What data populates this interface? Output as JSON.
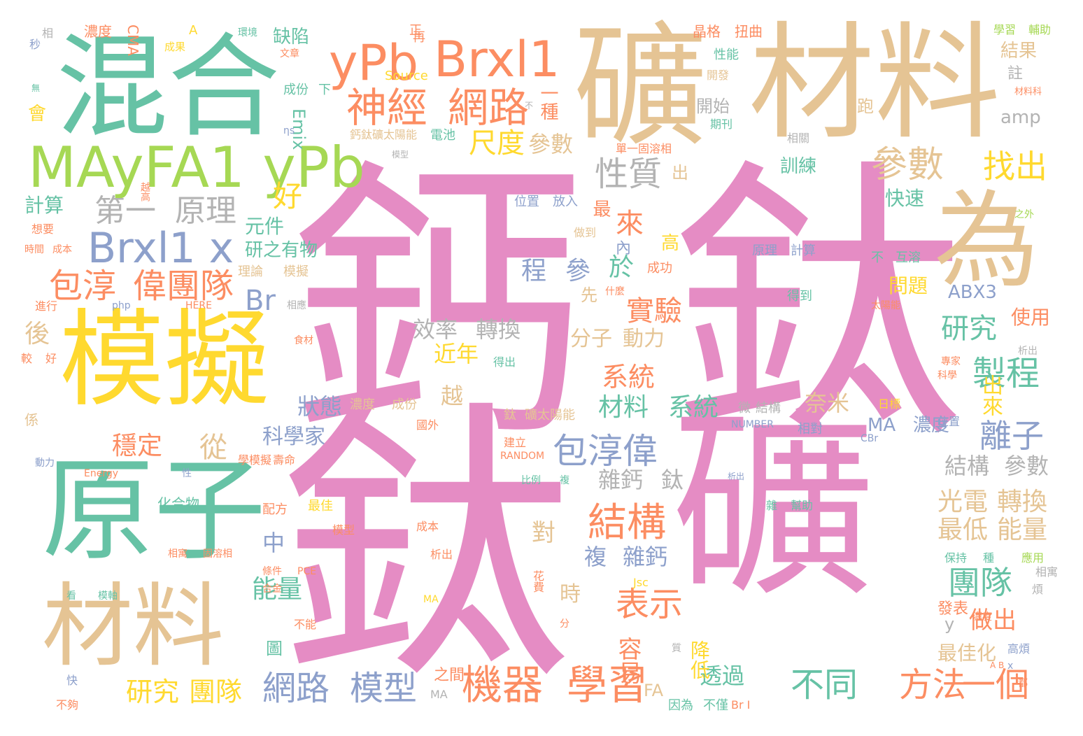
{
  "palette": {
    "pink": "#e58cc4",
    "green": "#66c2a5",
    "tan": "#e5c494",
    "yellow": "#ffd92f",
    "orange": "#fc8d62",
    "blue": "#8da0cb",
    "lime": "#a6d854",
    "gray": "#b3b3b3"
  },
  "words": [
    "鈣",
    "鈦",
    "鈦",
    "礦",
    "礦",
    "材料",
    "混合",
    "原子",
    "模擬",
    "材料",
    "為",
    "MAyFA1 yPb",
    "yPb",
    "Brxl1",
    "Brxl1 x",
    "神經",
    "網路",
    "參數",
    "找出",
    "包淳",
    "偉團隊",
    "第一",
    "原理",
    "性質",
    "尺度",
    "參數",
    "好",
    "Br",
    "包淳偉",
    "結構",
    "機器",
    "學習",
    "網路",
    "模型",
    "表示",
    "不同",
    "方法",
    "一個",
    "研究",
    "團隊",
    "製程",
    "離子",
    "團隊",
    "光電",
    "轉換",
    "最低",
    "能量",
    "轉換",
    "效率",
    "分子",
    "動力",
    "實驗",
    "系統",
    "材料",
    "系統",
    "程",
    "參",
    "於",
    "來",
    "研究",
    "後",
    "從",
    "穩定",
    "能量",
    "中",
    "越",
    "近年",
    "狀態",
    "科學家",
    "雜鈣",
    "鈦",
    "複",
    "雜鈣",
    "結構",
    "參數",
    "奈米",
    "MA",
    "濃度",
    "ABX3",
    "使用",
    "快速",
    "問題",
    "透過",
    "降低",
    "做出",
    "y",
    "最佳化",
    "容易",
    "時",
    "對",
    "計算",
    "元件",
    "研之有物",
    "Emix",
    "amp",
    "訓練",
    "出",
    "缺陷",
    "一種",
    "結果",
    "註",
    "開始",
    "跑",
    "高",
    "先",
    "最",
    "內",
    "出來",
    "濃度",
    "CMA",
    "A",
    "相",
    "秒",
    "成果",
    "環境",
    "文章",
    "正",
    "再",
    "晶格",
    "扭曲",
    "性能",
    "開發",
    "學習",
    "輔助",
    "材料科",
    "無",
    "會",
    "成份",
    "下",
    "Source",
    "不",
    "期刊",
    "ηs",
    "鈣鈦礦太陽能",
    "電池",
    "模型",
    "單一固溶相",
    "相關",
    "越高",
    "位置",
    "放入",
    "想要",
    "時間",
    "成本",
    "做到",
    "之外",
    "理論",
    "模擬",
    "成功",
    "原理",
    "計算",
    "什麼",
    "不",
    "互溶",
    "進行",
    "php",
    "HERE",
    "相應",
    "得到",
    "太陽能",
    "食材",
    "得出",
    "較",
    "好",
    "專家",
    "科學",
    "係",
    "濃度",
    "成份",
    "微",
    "結構",
    "鈦",
    "礦太陽能",
    "NUMBER",
    "相對",
    "位置",
    "國外",
    "建立",
    "RANDOM",
    "動力",
    "學模擬",
    "壽命",
    "Energy",
    "化合物",
    "配方",
    "最佳",
    "比例",
    "複",
    "雜",
    "幫助",
    "成本",
    "析出",
    "相寓",
    "固溶相",
    "條件",
    "PCE",
    "花費",
    "Jsc",
    "應用",
    "相寓",
    "煩",
    "合金",
    "看",
    "模軸",
    "發表",
    "快",
    "圖",
    "不能",
    "之間",
    "MA",
    "FA",
    "因為",
    "不僅",
    "Br I",
    "A B",
    "高煩",
    "x",
    "都",
    "不夠",
    "質",
    "分",
    "MA",
    "濃度",
    "CBr",
    "保持",
    "種",
    "析出",
    "日標",
    "模型",
    "性",
    "析出"
  ]
}
